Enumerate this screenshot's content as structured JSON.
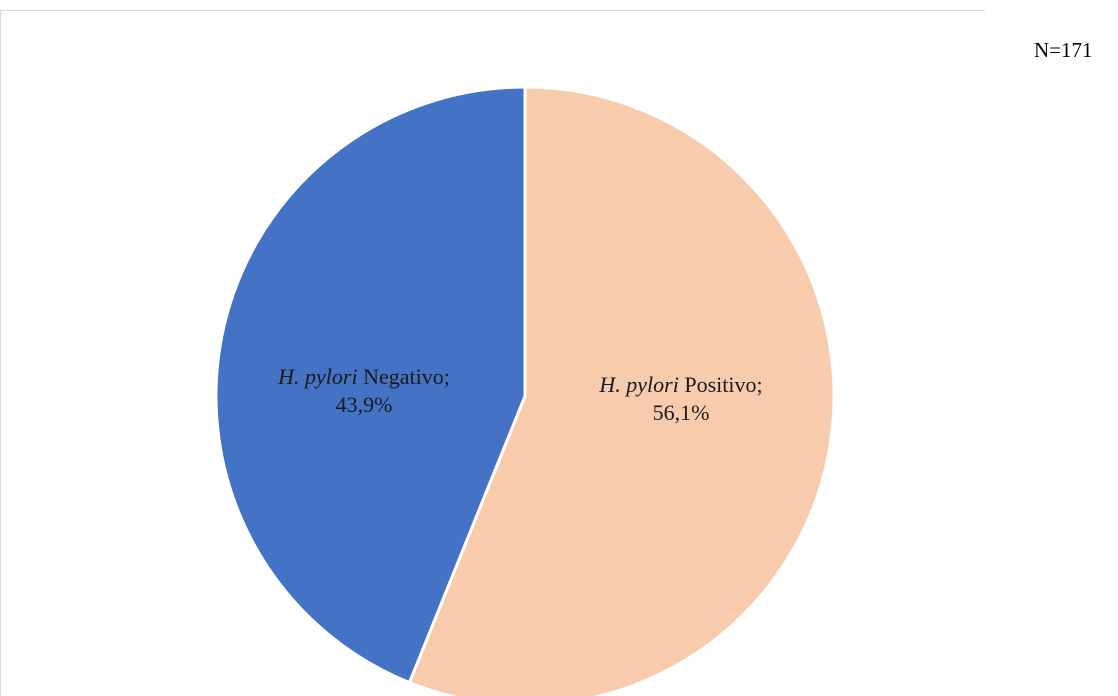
{
  "chart_data": {
    "type": "pie",
    "annotation": "N=171",
    "slices": [
      {
        "label_italic": "H. pylori",
        "label_rest": " Positivo;",
        "value": 56.1,
        "value_label": "56,1%",
        "color": "#f8cbad"
      },
      {
        "label_italic": "H. pylori",
        "label_rest": " Negativo;",
        "value": 43.9,
        "value_label": "43,9%",
        "color": "#4472c4"
      }
    ],
    "slice_border_color": "#ffffff",
    "legend": "none"
  }
}
